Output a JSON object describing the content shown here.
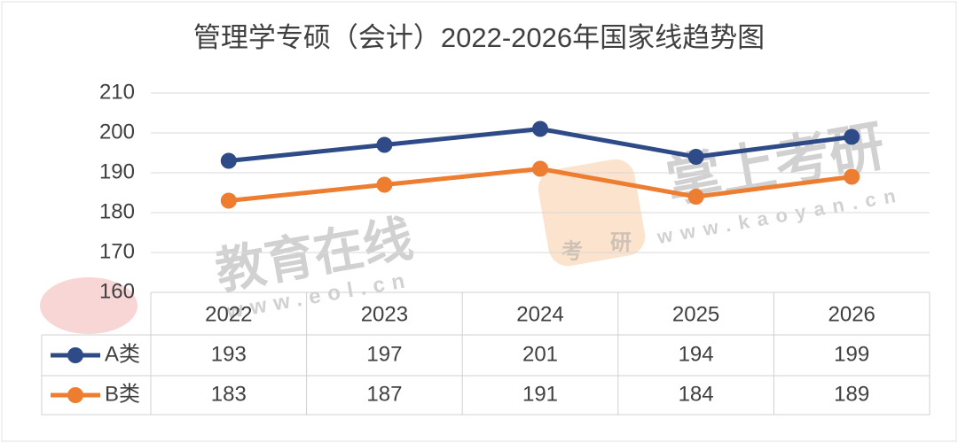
{
  "chart_data": {
    "type": "line",
    "title": "管理学专硕（会计）2022-2026年国家线趋势图",
    "categories": [
      "2022",
      "2023",
      "2024",
      "2025",
      "2026"
    ],
    "series": [
      {
        "name": "A类",
        "color": "#2f4b87",
        "values": [
          193,
          197,
          201,
          194,
          199
        ]
      },
      {
        "name": "B类",
        "color": "#ed7d31",
        "values": [
          183,
          187,
          191,
          184,
          189
        ]
      }
    ],
    "ylim": [
      160,
      210
    ],
    "yticks": [
      160,
      170,
      180,
      190,
      200,
      210
    ],
    "grid": true
  },
  "watermarks": {
    "left": "教育在线",
    "left_url": "www.eol.cn",
    "right": "掌上考研",
    "right_url": "www.kaoyan.cn",
    "logo_top": "考",
    "logo_bottom": "研"
  }
}
